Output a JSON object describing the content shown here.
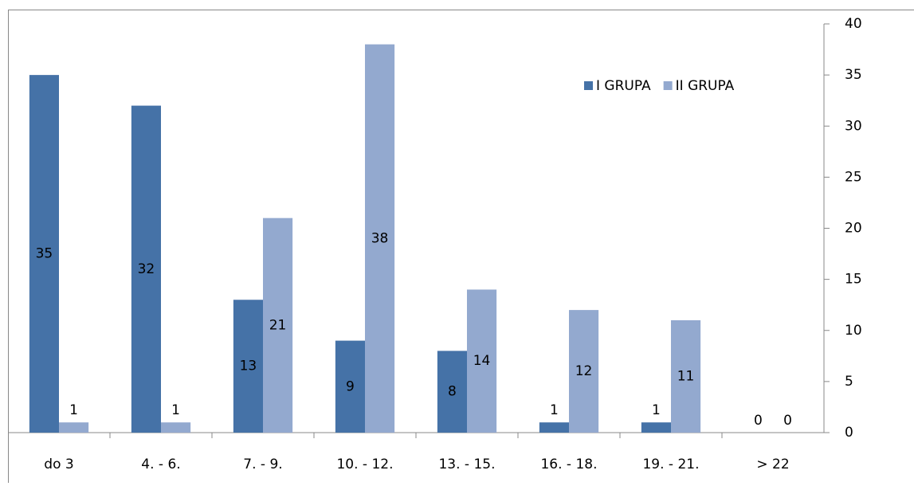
{
  "chart_data": {
    "type": "bar",
    "categories": [
      "do 3",
      "4. - 6.",
      "7. - 9.",
      "10. - 12.",
      "13. - 15.",
      "16. - 18.",
      "19. - 21.",
      "> 22"
    ],
    "series": [
      {
        "name": "I GRUPA",
        "color": "#4572a7",
        "values": [
          35,
          32,
          13,
          9,
          8,
          1,
          1,
          0
        ]
      },
      {
        "name": "II GRUPA",
        "color": "#93a9cf",
        "values": [
          1,
          1,
          21,
          38,
          14,
          12,
          11,
          0
        ]
      }
    ],
    "ylim": [
      0,
      40
    ],
    "yticks": [
      0,
      5,
      10,
      15,
      20,
      25,
      30,
      35,
      40
    ],
    "y_axis_side": "right",
    "legend": "top-right",
    "grid": false
  }
}
